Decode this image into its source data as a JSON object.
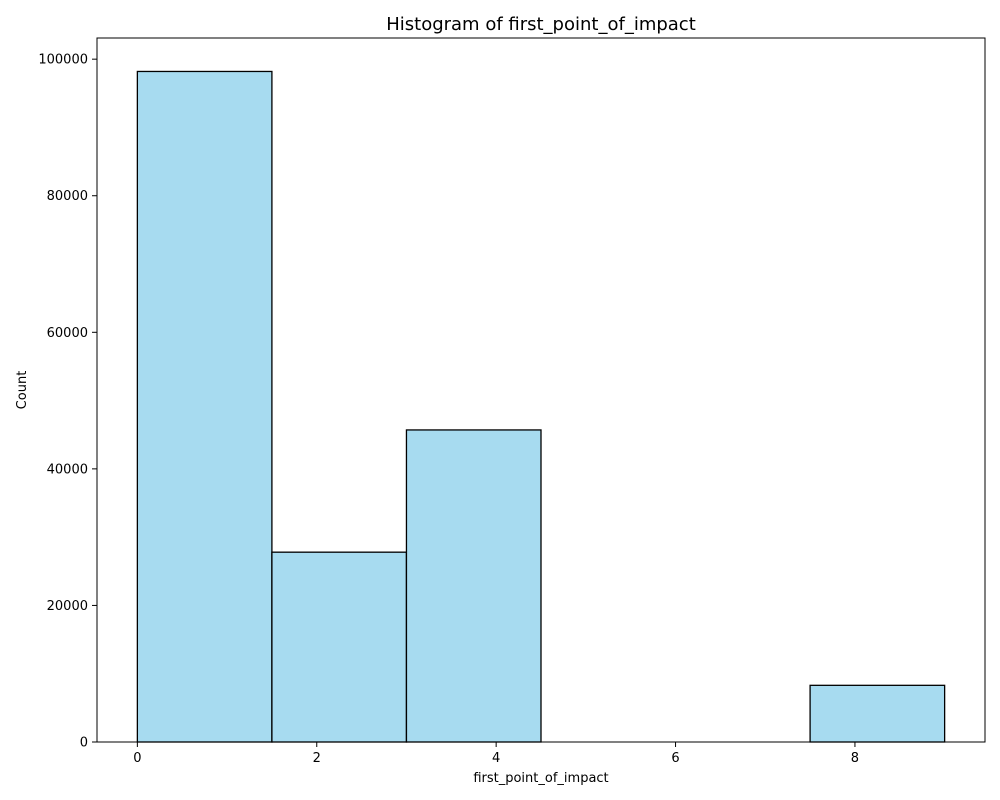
{
  "chart_data": {
    "type": "bar",
    "title": "Histogram of first_point_of_impact",
    "xlabel": "first_point_of_impact",
    "ylabel": "Count",
    "bins": [
      {
        "start": 0.0,
        "end": 1.5,
        "value": 98200
      },
      {
        "start": 1.5,
        "end": 3.0,
        "value": 27800
      },
      {
        "start": 3.0,
        "end": 4.5,
        "value": 45700
      },
      {
        "start": 4.5,
        "end": 6.0,
        "value": 0
      },
      {
        "start": 6.0,
        "end": 7.5,
        "value": 0
      },
      {
        "start": 7.5,
        "end": 9.0,
        "value": 8300
      }
    ],
    "xlim": [
      -0.45,
      9.45
    ],
    "ylim": [
      0,
      103100
    ],
    "xticks": [
      0,
      2,
      4,
      6,
      8
    ],
    "yticks": [
      0,
      20000,
      40000,
      60000,
      80000,
      100000
    ],
    "grid": false,
    "bar_color": "#a7dbf0",
    "edge_color": "#000000"
  }
}
